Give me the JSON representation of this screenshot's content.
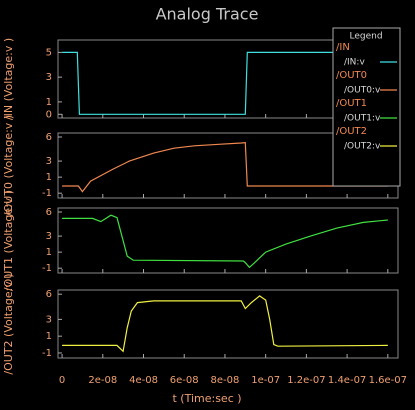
{
  "title": "Analog Trace",
  "xlabel": "t (Time:sec )",
  "legend_title": "Legend",
  "xlim": [
    -2e-09,
    1.65e-07
  ],
  "xticks": [
    0,
    {
      "value": 2e-08,
      "label": "2e-08"
    },
    {
      "value": 4e-08,
      "label": "4e-08"
    },
    {
      "value": 6e-08,
      "label": "6e-08"
    },
    {
      "value": 8e-08,
      "label": "8e-08"
    },
    {
      "value": 1e-07,
      "label": "1e-07"
    },
    {
      "value": 1.2e-07,
      "label": "1.2e-07"
    },
    {
      "value": 1.4e-07,
      "label": "1.4e-07"
    },
    {
      "value": 1.6e-07,
      "label": "1.6e-07"
    }
  ],
  "chart_data": [
    {
      "type": "line",
      "ylabel": "/IN (Voltage:v )",
      "ylim": [
        -0.3,
        6
      ],
      "yticks": [
        0,
        1,
        3,
        5
      ],
      "series": [
        {
          "signal": "/IN",
          "name": "/IN:v",
          "color": "#40e0e0",
          "x": [
            0,
            7.5e-09,
            8.5e-09,
            9e-08,
            9.1e-08,
            1.6e-07
          ],
          "values": [
            5,
            5,
            0,
            0,
            5,
            5
          ]
        }
      ]
    },
    {
      "type": "line",
      "ylabel": "/OUT0 (Voltage:v )",
      "ylim": [
        -1.6,
        6.5
      ],
      "yticks": [
        -1,
        1,
        3,
        6
      ],
      "series": [
        {
          "signal": "/OUT0",
          "name": "/OUT0:v",
          "color": "#f08850",
          "x": [
            0,
            8e-09,
            1e-08,
            1.4e-08,
            2.5e-08,
            3.3e-08,
            4.5e-08,
            5.5e-08,
            6.5e-08,
            7.8e-08,
            8.8e-08,
            9e-08,
            9.1e-08,
            1.6e-07
          ],
          "values": [
            -0.1,
            -0.1,
            -0.8,
            0.5,
            2,
            3,
            4,
            4.6,
            4.9,
            5.1,
            5.25,
            5.3,
            -0.1,
            -0.1
          ]
        }
      ]
    },
    {
      "type": "line",
      "ylabel": "/OUT1 (Voltage:v )",
      "ylim": [
        -1.6,
        6.5
      ],
      "yticks": [
        -1,
        1,
        3,
        6
      ],
      "series": [
        {
          "signal": "/OUT1",
          "name": "/OUT1:v",
          "color": "#40e040",
          "x": [
            0,
            1.5e-08,
            1.9e-08,
            2.4e-08,
            2.7e-08,
            3.2e-08,
            3.5e-08,
            8.9e-08,
            9e-08,
            9.2e-08,
            9.5e-08,
            1e-07,
            1.1e-07,
            1.22e-07,
            1.35e-07,
            1.48e-07,
            1.6e-07
          ],
          "values": [
            5.2,
            5.2,
            4.8,
            5.6,
            5.3,
            0.5,
            0,
            -0.1,
            -0.3,
            -0.9,
            -0.2,
            1,
            2,
            3,
            4,
            4.7,
            5
          ]
        }
      ]
    },
    {
      "type": "line",
      "ylabel": "/OUT2 (Voltage:v )",
      "ylim": [
        -1.6,
        6.5
      ],
      "yticks": [
        -1,
        1,
        3,
        6
      ],
      "series": [
        {
          "signal": "/OUT2",
          "name": "/OUT2:v",
          "color": "#f0f040",
          "x": [
            0,
            2.7e-08,
            3e-08,
            3.2e-08,
            3.4e-08,
            3.7e-08,
            4.5e-08,
            8.8e-08,
            9e-08,
            9.3e-08,
            9.7e-08,
            1e-07,
            1.02e-07,
            1.04e-07,
            1.06e-07,
            1.6e-07
          ],
          "values": [
            -0.1,
            -0.1,
            -0.8,
            2,
            4,
            5,
            5.2,
            5.2,
            4.3,
            5,
            5.8,
            5.3,
            3,
            0,
            -0.2,
            -0.1
          ]
        }
      ]
    }
  ]
}
